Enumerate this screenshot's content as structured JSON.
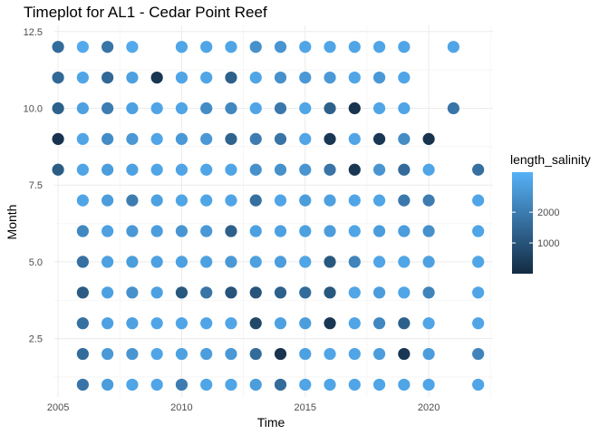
{
  "chart_data": {
    "type": "scatter",
    "title": "Timeplot for AL1 - Cedar Point Reef",
    "xlabel": "Time",
    "ylabel": "Month",
    "xlim": [
      2004.85,
      2022.6
    ],
    "ylim": [
      0.6,
      12.7
    ],
    "x_ticks": [
      2005,
      2010,
      2015,
      2020
    ],
    "x_tick_labels": [
      "2005",
      "2010",
      "2015",
      "2020"
    ],
    "y_ticks": [
      2.5,
      5.0,
      7.5,
      10.0,
      12.5
    ],
    "y_tick_labels": [
      "2.5",
      "5.0",
      "7.5",
      "10.0",
      "12.5"
    ],
    "grid": true,
    "legend": {
      "title": "length_salinity",
      "position": "right",
      "range": [
        0,
        3300
      ],
      "ticks": [
        1000,
        2000
      ],
      "tick_labels": [
        "1000",
        "2000"
      ],
      "color_low": "#132B43",
      "color_high": "#56B1F7"
    },
    "points": [
      {
        "x": 2005,
        "y": 12,
        "c": 1600
      },
      {
        "x": 2005,
        "y": 11,
        "c": 1500
      },
      {
        "x": 2005,
        "y": 10,
        "c": 1300
      },
      {
        "x": 2005,
        "y": 9,
        "c": 200
      },
      {
        "x": 2005,
        "y": 8,
        "c": 1200
      },
      {
        "x": 2006,
        "y": 12,
        "c": 3100
      },
      {
        "x": 2006,
        "y": 11,
        "c": 3000
      },
      {
        "x": 2006,
        "y": 10,
        "c": 2900
      },
      {
        "x": 2006,
        "y": 9,
        "c": 3000
      },
      {
        "x": 2006,
        "y": 8,
        "c": 3000
      },
      {
        "x": 2006,
        "y": 7,
        "c": 3000
      },
      {
        "x": 2006,
        "y": 6,
        "c": 2300
      },
      {
        "x": 2006,
        "y": 5,
        "c": 1700
      },
      {
        "x": 2006,
        "y": 4,
        "c": 1200
      },
      {
        "x": 2006,
        "y": 3,
        "c": 1700
      },
      {
        "x": 2006,
        "y": 2,
        "c": 1600
      },
      {
        "x": 2006,
        "y": 1,
        "c": 1800
      },
      {
        "x": 2007,
        "y": 12,
        "c": 1800
      },
      {
        "x": 2007,
        "y": 11,
        "c": 1500
      },
      {
        "x": 2007,
        "y": 10,
        "c": 2000
      },
      {
        "x": 2007,
        "y": 9,
        "c": 2400
      },
      {
        "x": 2007,
        "y": 8,
        "c": 2800
      },
      {
        "x": 2007,
        "y": 7,
        "c": 2800
      },
      {
        "x": 2007,
        "y": 6,
        "c": 2900
      },
      {
        "x": 2007,
        "y": 5,
        "c": 2900
      },
      {
        "x": 2007,
        "y": 4,
        "c": 2900
      },
      {
        "x": 2007,
        "y": 3,
        "c": 2900
      },
      {
        "x": 2007,
        "y": 2,
        "c": 2700
      },
      {
        "x": 2007,
        "y": 1,
        "c": 2800
      },
      {
        "x": 2008,
        "y": 12,
        "c": 3100
      },
      {
        "x": 2008,
        "y": 11,
        "c": 2900
      },
      {
        "x": 2008,
        "y": 10,
        "c": 2900
      },
      {
        "x": 2008,
        "y": 9,
        "c": 2700
      },
      {
        "x": 2008,
        "y": 8,
        "c": 2900
      },
      {
        "x": 2008,
        "y": 7,
        "c": 2000
      },
      {
        "x": 2008,
        "y": 6,
        "c": 2700
      },
      {
        "x": 2008,
        "y": 5,
        "c": 2800
      },
      {
        "x": 2008,
        "y": 4,
        "c": 2500
      },
      {
        "x": 2008,
        "y": 3,
        "c": 2900
      },
      {
        "x": 2008,
        "y": 2,
        "c": 2600
      },
      {
        "x": 2008,
        "y": 1,
        "c": 3000
      },
      {
        "x": 2009,
        "y": 11,
        "c": 300
      },
      {
        "x": 2009,
        "y": 10,
        "c": 3000
      },
      {
        "x": 2009,
        "y": 9,
        "c": 3000
      },
      {
        "x": 2009,
        "y": 8,
        "c": 3000
      },
      {
        "x": 2009,
        "y": 7,
        "c": 2900
      },
      {
        "x": 2009,
        "y": 6,
        "c": 2800
      },
      {
        "x": 2009,
        "y": 5,
        "c": 2900
      },
      {
        "x": 2009,
        "y": 4,
        "c": 2900
      },
      {
        "x": 2009,
        "y": 3,
        "c": 3000
      },
      {
        "x": 2009,
        "y": 2,
        "c": 3000
      },
      {
        "x": 2009,
        "y": 1,
        "c": 3000
      },
      {
        "x": 2010,
        "y": 12,
        "c": 3000
      },
      {
        "x": 2010,
        "y": 11,
        "c": 3000
      },
      {
        "x": 2010,
        "y": 10,
        "c": 3000
      },
      {
        "x": 2010,
        "y": 9,
        "c": 2700
      },
      {
        "x": 2010,
        "y": 8,
        "c": 3000
      },
      {
        "x": 2010,
        "y": 7,
        "c": 3000
      },
      {
        "x": 2010,
        "y": 6,
        "c": 2600
      },
      {
        "x": 2010,
        "y": 5,
        "c": 2900
      },
      {
        "x": 2010,
        "y": 4,
        "c": 1100
      },
      {
        "x": 2010,
        "y": 3,
        "c": 3000
      },
      {
        "x": 2010,
        "y": 2,
        "c": 2900
      },
      {
        "x": 2010,
        "y": 1,
        "c": 2000
      },
      {
        "x": 2011,
        "y": 12,
        "c": 3000
      },
      {
        "x": 2011,
        "y": 11,
        "c": 3000
      },
      {
        "x": 2011,
        "y": 10,
        "c": 2400
      },
      {
        "x": 2011,
        "y": 9,
        "c": 2700
      },
      {
        "x": 2011,
        "y": 8,
        "c": 3000
      },
      {
        "x": 2011,
        "y": 7,
        "c": 3000
      },
      {
        "x": 2011,
        "y": 6,
        "c": 2700
      },
      {
        "x": 2011,
        "y": 5,
        "c": 2900
      },
      {
        "x": 2011,
        "y": 4,
        "c": 1800
      },
      {
        "x": 2011,
        "y": 3,
        "c": 3000
      },
      {
        "x": 2011,
        "y": 2,
        "c": 2800
      },
      {
        "x": 2011,
        "y": 1,
        "c": 3000
      },
      {
        "x": 2012,
        "y": 12,
        "c": 3000
      },
      {
        "x": 2012,
        "y": 11,
        "c": 1300
      },
      {
        "x": 2012,
        "y": 10,
        "c": 2300
      },
      {
        "x": 2012,
        "y": 9,
        "c": 1400
      },
      {
        "x": 2012,
        "y": 8,
        "c": 3000
      },
      {
        "x": 2012,
        "y": 7,
        "c": 3000
      },
      {
        "x": 2012,
        "y": 6,
        "c": 1300
      },
      {
        "x": 2012,
        "y": 5,
        "c": 2700
      },
      {
        "x": 2012,
        "y": 4,
        "c": 1000
      },
      {
        "x": 2012,
        "y": 3,
        "c": 3000
      },
      {
        "x": 2012,
        "y": 2,
        "c": 2700
      },
      {
        "x": 2012,
        "y": 1,
        "c": 3000
      },
      {
        "x": 2013,
        "y": 12,
        "c": 2500
      },
      {
        "x": 2013,
        "y": 11,
        "c": 3000
      },
      {
        "x": 2013,
        "y": 10,
        "c": 3000
      },
      {
        "x": 2013,
        "y": 9,
        "c": 2000
      },
      {
        "x": 2013,
        "y": 8,
        "c": 2500
      },
      {
        "x": 2013,
        "y": 7,
        "c": 1700
      },
      {
        "x": 2013,
        "y": 6,
        "c": 2900
      },
      {
        "x": 2013,
        "y": 5,
        "c": 2900
      },
      {
        "x": 2013,
        "y": 4,
        "c": 1000
      },
      {
        "x": 2013,
        "y": 3,
        "c": 700
      },
      {
        "x": 2013,
        "y": 2,
        "c": 1600
      },
      {
        "x": 2013,
        "y": 1,
        "c": 2800
      },
      {
        "x": 2014,
        "y": 12,
        "c": 2600
      },
      {
        "x": 2014,
        "y": 11,
        "c": 2500
      },
      {
        "x": 2014,
        "y": 10,
        "c": 1900
      },
      {
        "x": 2014,
        "y": 9,
        "c": 1800
      },
      {
        "x": 2014,
        "y": 8,
        "c": 2500
      },
      {
        "x": 2014,
        "y": 7,
        "c": 3000
      },
      {
        "x": 2014,
        "y": 6,
        "c": 2900
      },
      {
        "x": 2014,
        "y": 5,
        "c": 2800
      },
      {
        "x": 2014,
        "y": 4,
        "c": 1300
      },
      {
        "x": 2014,
        "y": 3,
        "c": 2900
      },
      {
        "x": 2014,
        "y": 2,
        "c": 200
      },
      {
        "x": 2014,
        "y": 1,
        "c": 1600
      },
      {
        "x": 2015,
        "y": 12,
        "c": 3000
      },
      {
        "x": 2015,
        "y": 11,
        "c": 2700
      },
      {
        "x": 2015,
        "y": 10,
        "c": 3000
      },
      {
        "x": 2015,
        "y": 9,
        "c": 3000
      },
      {
        "x": 2015,
        "y": 8,
        "c": 2600
      },
      {
        "x": 2015,
        "y": 7,
        "c": 2800
      },
      {
        "x": 2015,
        "y": 6,
        "c": 2900
      },
      {
        "x": 2015,
        "y": 5,
        "c": 3000
      },
      {
        "x": 2015,
        "y": 4,
        "c": 1600
      },
      {
        "x": 2015,
        "y": 3,
        "c": 2800
      },
      {
        "x": 2015,
        "y": 2,
        "c": 2900
      },
      {
        "x": 2015,
        "y": 1,
        "c": 3000
      },
      {
        "x": 2016,
        "y": 12,
        "c": 3000
      },
      {
        "x": 2016,
        "y": 11,
        "c": 2700
      },
      {
        "x": 2016,
        "y": 10,
        "c": 1300
      },
      {
        "x": 2016,
        "y": 9,
        "c": 300
      },
      {
        "x": 2016,
        "y": 8,
        "c": 1800
      },
      {
        "x": 2016,
        "y": 7,
        "c": 2900
      },
      {
        "x": 2016,
        "y": 6,
        "c": 2800
      },
      {
        "x": 2016,
        "y": 5,
        "c": 1100
      },
      {
        "x": 2016,
        "y": 4,
        "c": 1100
      },
      {
        "x": 2016,
        "y": 3,
        "c": 300
      },
      {
        "x": 2016,
        "y": 2,
        "c": 3000
      },
      {
        "x": 2016,
        "y": 1,
        "c": 3000
      },
      {
        "x": 2017,
        "y": 12,
        "c": 3000
      },
      {
        "x": 2017,
        "y": 11,
        "c": 3000
      },
      {
        "x": 2017,
        "y": 10,
        "c": 200
      },
      {
        "x": 2017,
        "y": 9,
        "c": 3000
      },
      {
        "x": 2017,
        "y": 8,
        "c": 300
      },
      {
        "x": 2017,
        "y": 7,
        "c": 3000
      },
      {
        "x": 2017,
        "y": 6,
        "c": 3000
      },
      {
        "x": 2017,
        "y": 5,
        "c": 2200
      },
      {
        "x": 2017,
        "y": 4,
        "c": 3000
      },
      {
        "x": 2017,
        "y": 3,
        "c": 3000
      },
      {
        "x": 2017,
        "y": 2,
        "c": 3000
      },
      {
        "x": 2017,
        "y": 1,
        "c": 3000
      },
      {
        "x": 2018,
        "y": 12,
        "c": 3000
      },
      {
        "x": 2018,
        "y": 11,
        "c": 2700
      },
      {
        "x": 2018,
        "y": 10,
        "c": 3000
      },
      {
        "x": 2018,
        "y": 9,
        "c": 300
      },
      {
        "x": 2018,
        "y": 8,
        "c": 2600
      },
      {
        "x": 2018,
        "y": 7,
        "c": 3000
      },
      {
        "x": 2018,
        "y": 6,
        "c": 2800
      },
      {
        "x": 2018,
        "y": 5,
        "c": 3000
      },
      {
        "x": 2018,
        "y": 4,
        "c": 2800
      },
      {
        "x": 2018,
        "y": 3,
        "c": 2300
      },
      {
        "x": 2018,
        "y": 2,
        "c": 2800
      },
      {
        "x": 2018,
        "y": 1,
        "c": 3000
      },
      {
        "x": 2019,
        "y": 12,
        "c": 3000
      },
      {
        "x": 2019,
        "y": 11,
        "c": 3000
      },
      {
        "x": 2019,
        "y": 10,
        "c": 3000
      },
      {
        "x": 2019,
        "y": 9,
        "c": 2400
      },
      {
        "x": 2019,
        "y": 8,
        "c": 1600
      },
      {
        "x": 2019,
        "y": 7,
        "c": 1900
      },
      {
        "x": 2019,
        "y": 6,
        "c": 2800
      },
      {
        "x": 2019,
        "y": 5,
        "c": 3000
      },
      {
        "x": 2019,
        "y": 4,
        "c": 3000
      },
      {
        "x": 2019,
        "y": 3,
        "c": 1300
      },
      {
        "x": 2019,
        "y": 2,
        "c": 300
      },
      {
        "x": 2019,
        "y": 1,
        "c": 3000
      },
      {
        "x": 2020,
        "y": 9,
        "c": 200
      },
      {
        "x": 2020,
        "y": 8,
        "c": 3000
      },
      {
        "x": 2020,
        "y": 7,
        "c": 2000
      },
      {
        "x": 2020,
        "y": 6,
        "c": 2500
      },
      {
        "x": 2020,
        "y": 5,
        "c": 2900
      },
      {
        "x": 2020,
        "y": 4,
        "c": 2200
      },
      {
        "x": 2020,
        "y": 3,
        "c": 3000
      },
      {
        "x": 2020,
        "y": 2,
        "c": 2800
      },
      {
        "x": 2020,
        "y": 1,
        "c": 3000
      },
      {
        "x": 2021,
        "y": 12,
        "c": 3000
      },
      {
        "x": 2021,
        "y": 10,
        "c": 1800
      },
      {
        "x": 2022,
        "y": 8,
        "c": 1700
      },
      {
        "x": 2022,
        "y": 7,
        "c": 3000
      },
      {
        "x": 2022,
        "y": 6,
        "c": 3000
      },
      {
        "x": 2022,
        "y": 5,
        "c": 3000
      },
      {
        "x": 2022,
        "y": 4,
        "c": 3000
      },
      {
        "x": 2022,
        "y": 3,
        "c": 3000
      },
      {
        "x": 2022,
        "y": 2,
        "c": 2200
      },
      {
        "x": 2022,
        "y": 1,
        "c": 3000
      }
    ]
  }
}
